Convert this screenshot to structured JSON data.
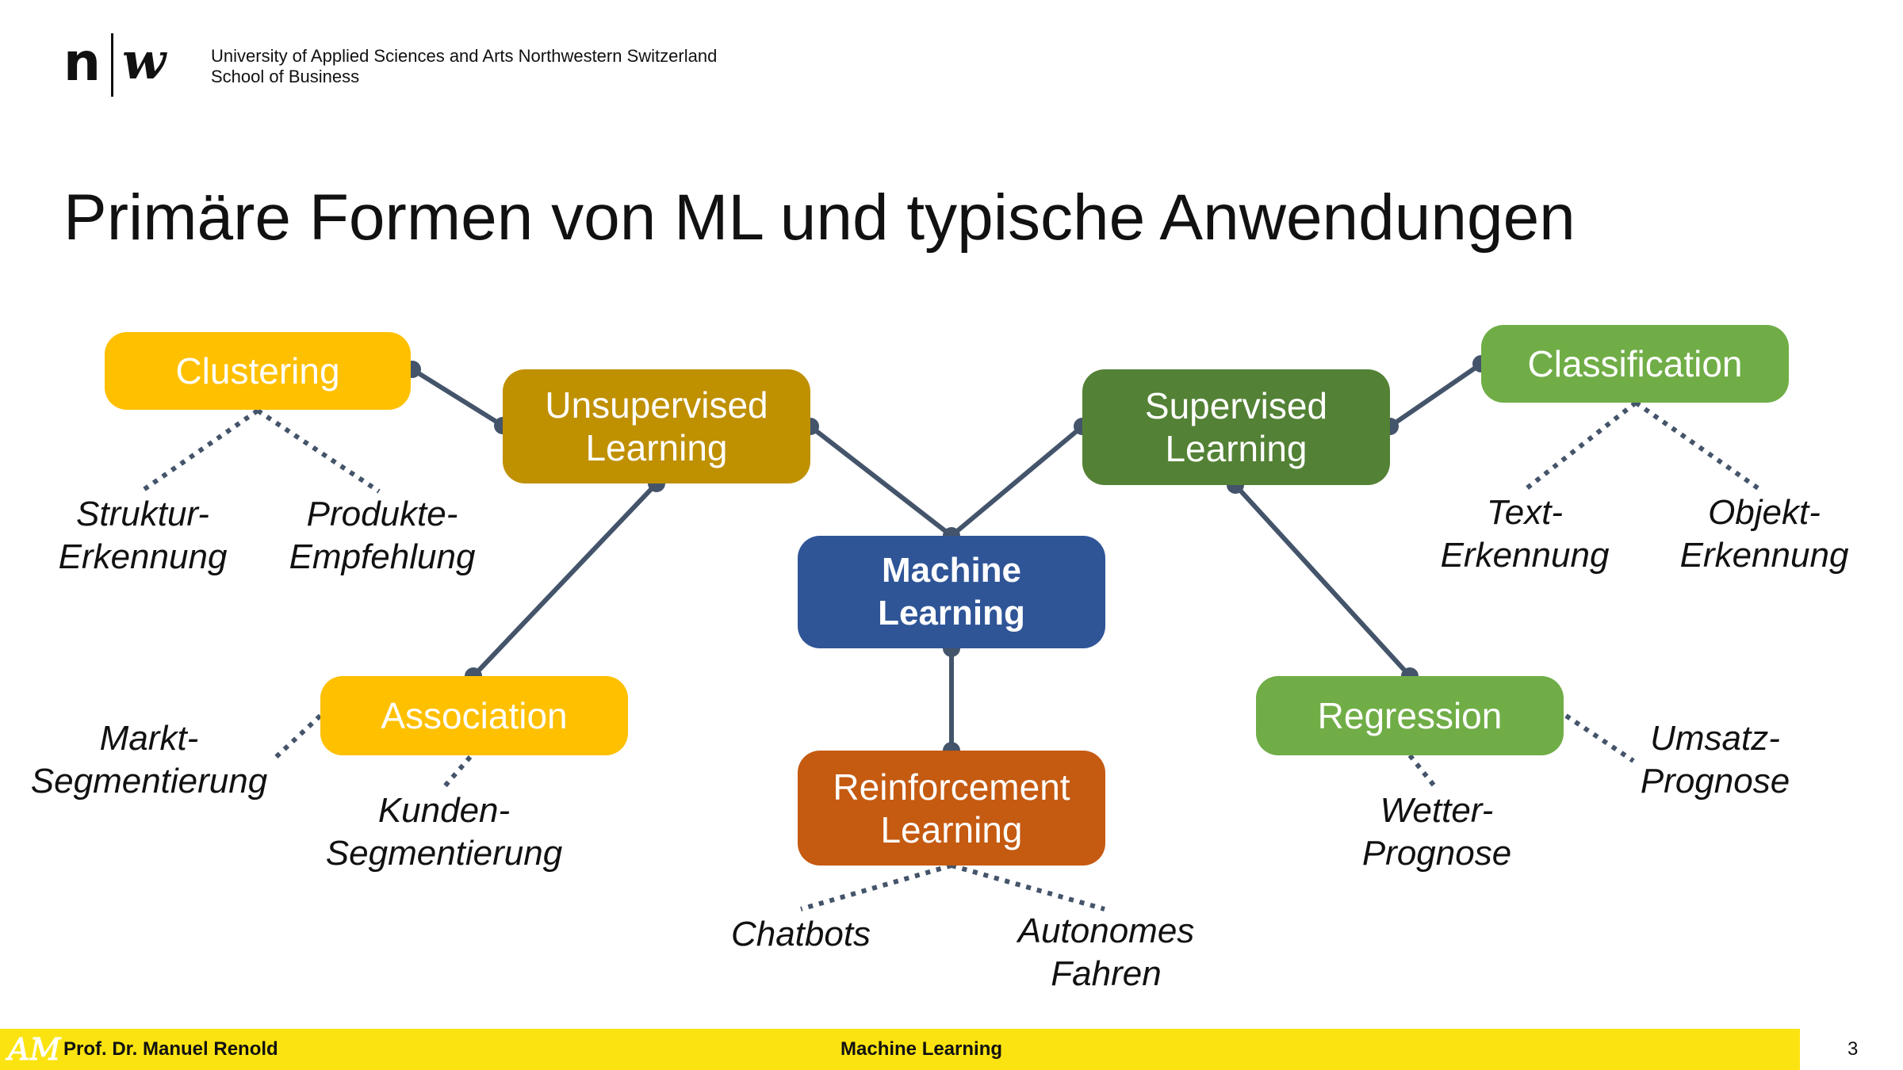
{
  "header": {
    "logo_n": "n",
    "logo_w": "w",
    "university": "University of Applied Sciences and Arts Northwestern Switzerland",
    "school": "School of Business"
  },
  "title": "Primäre Formen von ML und typische Anwendungen",
  "diagram": {
    "nodes": {
      "clustering": "Clustering",
      "unsupervised_1": "Unsupervised",
      "unsupervised_2": "Learning",
      "supervised_1": "Supervised",
      "supervised_2": "Learning",
      "classification": "Classification",
      "ml_1": "Machine",
      "ml_2": "Learning",
      "association": "Association",
      "regression": "Regression",
      "reinforcement_1": "Reinforcement",
      "reinforcement_2": "Learning"
    },
    "leaves": {
      "struktur_1": "Struktur-",
      "struktur_2": "Erkennung",
      "produkte_1": "Produkte-",
      "produkte_2": "Empfehlung",
      "text_1": "Text-",
      "text_2": "Erkennung",
      "objekt_1": "Objekt-",
      "objekt_2": "Erkennung",
      "markt_1": "Markt-",
      "markt_2": "Segmentierung",
      "kunden_1": "Kunden-",
      "kunden_2": "Segmentierung",
      "chatbots": "Chatbots",
      "autonomes_1": "Autonomes",
      "autonomes_2": "Fahren",
      "wetter_1": "Wetter-",
      "wetter_2": "Prognose",
      "umsatz_1": "Umsatz-",
      "umsatz_2": "Prognose"
    },
    "colors": {
      "connector": "#44546a",
      "yellow": "#ffc000",
      "olive": "#bf9000",
      "dark_green": "#538135",
      "light_green": "#70ad47",
      "blue": "#2f5597",
      "orange": "#c55a11"
    }
  },
  "footer": {
    "logo_text": "AM",
    "author": "Prof. Dr. Manuel Renold",
    "center": "Machine Learning",
    "page": "3"
  }
}
